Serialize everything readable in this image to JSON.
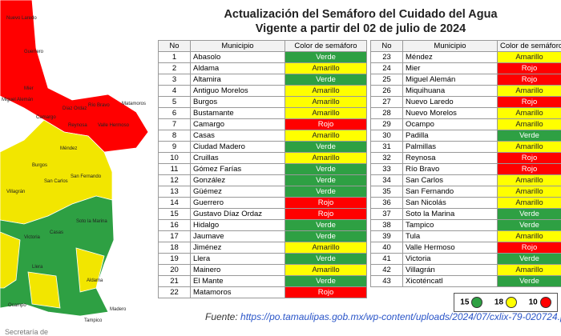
{
  "header": {
    "title": "Actualización del Semáforo del Cuidado del Agua",
    "subtitle": "Vigente a partir del 02 de julio de 2024"
  },
  "table": {
    "header": [
      "No",
      "Municipio",
      "Color de semáforo"
    ],
    "left_rows": [
      {
        "no": 1,
        "municipio": "Abasolo",
        "estado": "Verde",
        "color": "#2ea043"
      },
      {
        "no": 2,
        "municipio": "Aldama",
        "estado": "Amarillo",
        "color": "#ffff00"
      },
      {
        "no": 3,
        "municipio": "Altamira",
        "estado": "Verde",
        "color": "#2ea043"
      },
      {
        "no": 4,
        "municipio": "Antiguo Morelos",
        "estado": "Amarillo",
        "color": "#ffff00"
      },
      {
        "no": 5,
        "municipio": "Burgos",
        "estado": "Amarillo",
        "color": "#ffff00"
      },
      {
        "no": 6,
        "municipio": "Bustamante",
        "estado": "Amarillo",
        "color": "#ffff00"
      },
      {
        "no": 7,
        "municipio": "Camargo",
        "estado": "Rojo",
        "color": "#ff0000"
      },
      {
        "no": 8,
        "municipio": "Casas",
        "estado": "Amarillo",
        "color": "#ffff00"
      },
      {
        "no": 9,
        "municipio": "Ciudad Madero",
        "estado": "Verde",
        "color": "#2ea043"
      },
      {
        "no": 10,
        "municipio": "Cruillas",
        "estado": "Amarillo",
        "color": "#ffff00"
      },
      {
        "no": 11,
        "municipio": "Gómez Farías",
        "estado": "Verde",
        "color": "#2ea043"
      },
      {
        "no": 12,
        "municipio": "González",
        "estado": "Verde",
        "color": "#2ea043"
      },
      {
        "no": 13,
        "municipio": "Güémez",
        "estado": "Verde",
        "color": "#2ea043"
      },
      {
        "no": 14,
        "municipio": "Guerrero",
        "estado": "Rojo",
        "color": "#ff0000"
      },
      {
        "no": 15,
        "municipio": "Gustavo Díaz Ordaz",
        "estado": "Rojo",
        "color": "#ff0000"
      },
      {
        "no": 16,
        "municipio": "Hidalgo",
        "estado": "Verde",
        "color": "#2ea043"
      },
      {
        "no": 17,
        "municipio": "Jaumave",
        "estado": "Verde",
        "color": "#2ea043"
      },
      {
        "no": 18,
        "municipio": "Jiménez",
        "estado": "Amarillo",
        "color": "#ffff00"
      },
      {
        "no": 19,
        "municipio": "Llera",
        "estado": "Verde",
        "color": "#2ea043"
      },
      {
        "no": 20,
        "municipio": "Mainero",
        "estado": "Amarillo",
        "color": "#ffff00"
      },
      {
        "no": 21,
        "municipio": "El Mante",
        "estado": "Verde",
        "color": "#2ea043"
      },
      {
        "no": 22,
        "municipio": "Matamoros",
        "estado": "Rojo",
        "color": "#ff0000"
      }
    ],
    "right_rows": [
      {
        "no": 23,
        "municipio": "Méndez",
        "estado": "Amarillo",
        "color": "#ffff00"
      },
      {
        "no": 24,
        "municipio": "Mier",
        "estado": "Rojo",
        "color": "#ff0000"
      },
      {
        "no": 25,
        "municipio": "Miguel Alemán",
        "estado": "Rojo",
        "color": "#ff0000"
      },
      {
        "no": 26,
        "municipio": "Miquihuana",
        "estado": "Amarillo",
        "color": "#ffff00"
      },
      {
        "no": 27,
        "municipio": "Nuevo Laredo",
        "estado": "Rojo",
        "color": "#ff0000"
      },
      {
        "no": 28,
        "municipio": "Nuevo Morelos",
        "estado": "Amarillo",
        "color": "#ffff00"
      },
      {
        "no": 29,
        "municipio": "Ocampo",
        "estado": "Amarillo",
        "color": "#ffff00"
      },
      {
        "no": 30,
        "municipio": "Padilla",
        "estado": "Verde",
        "color": "#2ea043"
      },
      {
        "no": 31,
        "municipio": "Palmillas",
        "estado": "Amarillo",
        "color": "#ffff00"
      },
      {
        "no": 32,
        "municipio": "Reynosa",
        "estado": "Rojo",
        "color": "#ff0000"
      },
      {
        "no": 33,
        "municipio": "Río Bravo",
        "estado": "Rojo",
        "color": "#ff0000"
      },
      {
        "no": 34,
        "municipio": "San Carlos",
        "estado": "Amarillo",
        "color": "#ffff00"
      },
      {
        "no": 35,
        "municipio": "San Fernando",
        "estado": "Amarillo",
        "color": "#ffff00"
      },
      {
        "no": 36,
        "municipio": "San Nicolás",
        "estado": "Amarillo",
        "color": "#ffff00"
      },
      {
        "no": 37,
        "municipio": "Soto la Marina",
        "estado": "Verde",
        "color": "#2ea043"
      },
      {
        "no": 38,
        "municipio": "Tampico",
        "estado": "Verde",
        "color": "#2ea043"
      },
      {
        "no": 39,
        "municipio": "Tula",
        "estado": "Amarillo",
        "color": "#ffff00"
      },
      {
        "no": 40,
        "municipio": "Valle Hermoso",
        "estado": "Rojo",
        "color": "#ff0000"
      },
      {
        "no": 41,
        "municipio": "Victoria",
        "estado": "Verde",
        "color": "#2ea043"
      },
      {
        "no": 42,
        "municipio": "Villagrán",
        "estado": "Amarillo",
        "color": "#ffff00"
      },
      {
        "no": 43,
        "municipio": "Xicoténcatl",
        "estado": "Verde",
        "color": "#2ea043"
      }
    ]
  },
  "legend": [
    {
      "count": 15,
      "color": "#2ea043"
    },
    {
      "count": 18,
      "color": "#ffff00"
    },
    {
      "count": 10,
      "color": "#ff0000"
    }
  ],
  "source": {
    "label": "Fuente:",
    "url": "https://po.tamaulipas.gob.mx/wp-content/uploads/2024/07/cxlix-79-020724.pdf"
  },
  "map": {
    "labels": [
      "Nuevo Laredo",
      "Guerrero",
      "Mier",
      "Miguel Alemán",
      "Díaz Ordaz",
      "Río Bravo",
      "Camargo",
      "Reynosa",
      "Matamoros",
      "Valle Hermoso",
      "Méndez",
      "Burgos",
      "San Fernando",
      "San Carlos",
      "Villagrán",
      "Soto la Marina",
      "Casas",
      "Victoria",
      "Llera",
      "Aldama",
      "Ocampo",
      "Madero",
      "Tampico"
    ]
  },
  "footer": "Secretaría de"
}
